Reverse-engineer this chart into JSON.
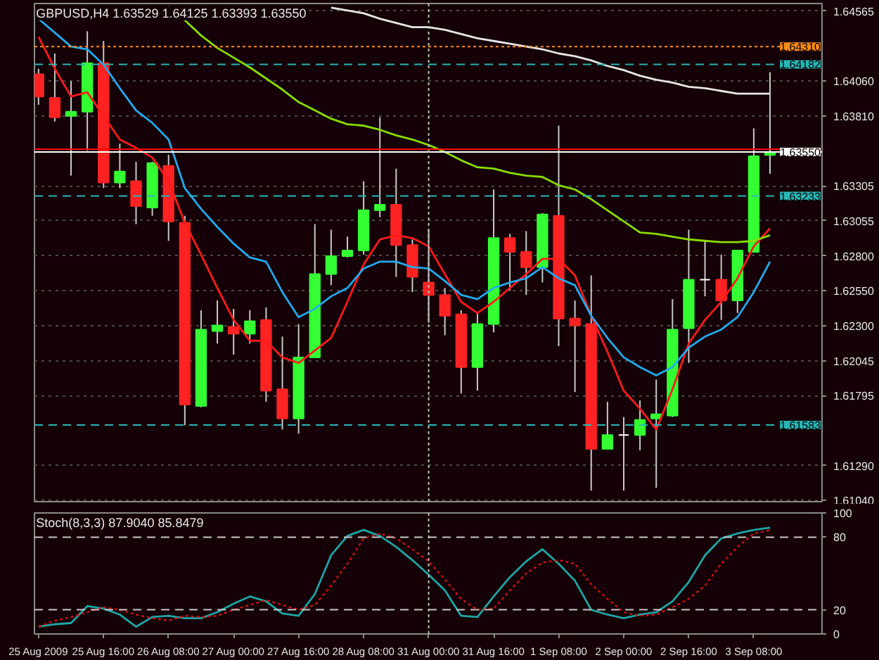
{
  "chart_data": [
    {
      "type": "candlestick",
      "title": "GBPUSD,H4 1.63529 1.64125 1.63393 1.63550",
      "categories": [
        "25 Aug 2009",
        null,
        null,
        null,
        "25 Aug 16:00",
        null,
        null,
        null,
        "26 Aug 08:00",
        null,
        null,
        null,
        "27 Aug 00:00",
        null,
        null,
        null,
        "27 Aug 16:00",
        null,
        null,
        null,
        "28 Aug 08:00",
        null,
        null,
        null,
        "31 Aug 00:00",
        null,
        null,
        null,
        "31 Aug 16:00",
        null,
        null,
        null,
        "1 Sep 08:00",
        null,
        null,
        null,
        "2 Sep 00:00",
        null,
        null,
        null,
        "2 Sep 16:00",
        null,
        null,
        null,
        "3 Sep 08:00",
        null
      ],
      "ohlc": [
        [
          1.6411,
          1.6415,
          1.6389,
          1.6395
        ],
        [
          1.6394,
          1.6426,
          1.6377,
          1.638
        ],
        [
          1.6381,
          1.6406,
          1.6338,
          1.6384
        ],
        [
          1.6384,
          1.6442,
          1.6356,
          1.6419
        ],
        [
          1.6419,
          1.6435,
          1.6329,
          1.6333
        ],
        [
          1.6333,
          1.6361,
          1.6329,
          1.6341
        ],
        [
          1.6334,
          1.6348,
          1.6303,
          1.6316
        ],
        [
          1.6315,
          1.6348,
          1.6309,
          1.6347
        ],
        [
          1.6345,
          1.6353,
          1.6291,
          1.6305
        ],
        [
          1.6304,
          1.6309,
          1.6158,
          1.6173
        ],
        [
          1.6172,
          1.6241,
          1.6171,
          1.6227
        ],
        [
          1.6226,
          1.6248,
          1.6217,
          1.623
        ],
        [
          1.6229,
          1.6242,
          1.6209,
          1.6224
        ],
        [
          1.6224,
          1.6241,
          1.6217,
          1.6233
        ],
        [
          1.6234,
          1.6243,
          1.6175,
          1.6183
        ],
        [
          1.6184,
          1.6222,
          1.6155,
          1.6163
        ],
        [
          1.6163,
          1.6231,
          1.6152,
          1.6207
        ],
        [
          1.6207,
          1.6303,
          1.6207,
          1.6267
        ],
        [
          1.6267,
          1.6299,
          1.6259,
          1.628
        ],
        [
          1.628,
          1.6294,
          1.6279,
          1.6284
        ],
        [
          1.6284,
          1.6334,
          1.6281,
          1.6313
        ],
        [
          1.6313,
          1.638,
          1.6308,
          1.6317
        ],
        [
          1.6317,
          1.6343,
          1.6265,
          1.6288
        ],
        [
          1.6288,
          1.6292,
          1.6254,
          1.6265
        ],
        [
          1.6261,
          1.6299,
          1.6232,
          1.6252
        ],
        [
          1.6252,
          1.6257,
          1.6223,
          1.6237
        ],
        [
          1.6238,
          1.6241,
          1.6181,
          1.62
        ],
        [
          1.62,
          1.6239,
          1.6183,
          1.6231
        ],
        [
          1.6231,
          1.6328,
          1.6225,
          1.6293
        ],
        [
          1.6293,
          1.6296,
          1.6255,
          1.6283
        ],
        [
          1.6283,
          1.6298,
          1.6252,
          1.6272
        ],
        [
          1.6272,
          1.6311,
          1.6261,
          1.631
        ],
        [
          1.6309,
          1.6374,
          1.6215,
          1.6235
        ],
        [
          1.6235,
          1.6248,
          1.6182,
          1.623
        ],
        [
          1.6231,
          1.6266,
          1.6111,
          1.6141
        ],
        [
          1.6141,
          1.6175,
          1.6141,
          1.6151
        ],
        [
          1.6151,
          1.6164,
          1.6111,
          1.6151
        ],
        [
          1.6151,
          1.6176,
          1.614,
          1.6162
        ],
        [
          1.6163,
          1.6191,
          1.6113,
          1.6166
        ],
        [
          1.6165,
          1.6249,
          1.6164,
          1.6227
        ],
        [
          1.6228,
          1.6299,
          1.6203,
          1.6263
        ],
        [
          1.6263,
          1.6291,
          1.6251,
          1.6263
        ],
        [
          1.6263,
          1.6281,
          1.6234,
          1.6248
        ],
        [
          1.6248,
          1.6284,
          1.6239,
          1.6284
        ],
        [
          1.6283,
          1.6372,
          1.6283,
          1.6352
        ],
        [
          1.63529,
          1.64125,
          1.63393,
          1.6355
        ]
      ],
      "colors": [
        "#ff2222",
        "#ff2222",
        "#33ff33",
        "#33ff33",
        "#ff2222",
        "#33ff33",
        "#ff2222",
        "#33ff33",
        "#ff2222",
        "#ff2222",
        "#33ff33",
        "#33ff33",
        "#ff2222",
        "#33ff33",
        "#ff2222",
        "#ff2222",
        "#33ff33",
        "#33ff33",
        "#33ff33",
        "#33ff33",
        "#33ff33",
        "#33ff33",
        "#ff2222",
        "#ff2222",
        "#ff2222",
        "#ff2222",
        "#ff2222",
        "#33ff33",
        "#33ff33",
        "#ff2222",
        "#ff2222",
        "#33ff33",
        "#ff2222",
        "#ff2222",
        "#ff2222",
        "#33ff33",
        "#ffffff",
        "#33ff33",
        "#33ff33",
        "#33ff33",
        "#33ff33",
        "#ffffff",
        "#ff2222",
        "#33ff33",
        "#33ff33",
        "#33ff33"
      ],
      "series": [
        {
          "type": "line",
          "color": "#ff1a1a",
          "values": [
            1.6438,
            1.6415,
            1.6395,
            1.6398,
            1.6381,
            1.6364,
            1.6358,
            1.6351,
            1.6334,
            1.6304,
            1.6281,
            1.6257,
            1.6234,
            1.6219,
            1.6219,
            1.6207,
            1.6203,
            1.6212,
            1.6221,
            1.6247,
            1.6274,
            1.6292,
            1.6295,
            1.6293,
            1.6287,
            1.6267,
            1.6247,
            1.6239,
            1.6247,
            1.6257,
            1.6267,
            1.6278,
            1.6278,
            1.6266,
            1.6237,
            1.6211,
            1.6183,
            1.617,
            1.6155,
            1.6184,
            1.6217,
            1.6234,
            1.6247,
            1.6264,
            1.6287,
            1.63
          ]
        },
        {
          "type": "line",
          "color": "#22aaee",
          "values": [
            1.6451,
            1.6441,
            1.6431,
            1.6429,
            1.6418,
            1.6401,
            1.6385,
            1.6376,
            1.6364,
            1.6329,
            1.6314,
            1.6301,
            1.6289,
            1.6279,
            1.6276,
            1.6254,
            1.6236,
            1.6242,
            1.6251,
            1.6257,
            1.6271,
            1.6276,
            1.6276,
            1.6272,
            1.6271,
            1.6262,
            1.6252,
            1.6249,
            1.6257,
            1.6261,
            1.6264,
            1.6272,
            1.6264,
            1.6259,
            1.6237,
            1.6221,
            1.6207,
            1.62,
            1.6194,
            1.62,
            1.6214,
            1.6222,
            1.6227,
            1.6236,
            1.6254,
            1.6276
          ]
        },
        {
          "type": "line",
          "color": "#88dd00",
          "values": [
            null,
            null,
            null,
            null,
            null,
            null,
            null,
            null,
            1.646,
            1.645,
            1.6439,
            1.643,
            1.6423,
            1.6416,
            1.6408,
            1.64,
            1.6391,
            1.6385,
            1.6379,
            1.6375,
            1.6374,
            1.6371,
            1.6367,
            1.6364,
            1.636,
            1.6355,
            1.6349,
            1.6344,
            1.6343,
            1.634,
            1.6338,
            1.6337,
            1.6331,
            1.6328,
            1.6321,
            1.6313,
            1.6305,
            1.6297,
            1.6296,
            1.6294,
            1.6292,
            1.6291,
            1.629,
            1.629,
            1.6291,
            1.6295
          ]
        },
        {
          "type": "line",
          "color": "#e6e6e6",
          "values": [
            null,
            null,
            null,
            null,
            null,
            null,
            null,
            null,
            null,
            null,
            null,
            null,
            null,
            null,
            null,
            null,
            null,
            null,
            1.6459,
            1.6457,
            1.6455,
            1.6451,
            1.6448,
            1.6445,
            1.6445,
            1.6443,
            1.644,
            1.6437,
            1.6435,
            1.6433,
            1.6431,
            1.6429,
            1.6426,
            1.6424,
            1.6421,
            1.6417,
            1.6414,
            1.641,
            1.6407,
            1.6405,
            1.6402,
            1.6401,
            1.6399,
            1.6397,
            1.6397,
            1.6397
          ]
        }
      ],
      "ylim": [
        1.6103,
        1.6462
      ],
      "yticks": [
        1.64565,
        {
          "value": 1.6406,
          "label": "1.64060"
        },
        {
          "value": 1.6381,
          "label": "1.63810"
        },
        1.63305,
        1.63055,
        {
          "value": 1.628,
          "label": "1.62800"
        },
        {
          "value": 1.6255,
          "label": "1.62550"
        },
        {
          "value": 1.623,
          "label": "1.62300"
        },
        1.62045,
        1.61795,
        {
          "value": 1.6129,
          "label": "1.61290"
        },
        {
          "value": 1.6104,
          "label": "1.61040"
        }
      ],
      "ref_lines": [
        {
          "axis": "y",
          "value": 1.6431,
          "label": "1.64310",
          "color": "#ff8c1a",
          "line_style": "dotted"
        },
        {
          "axis": "y",
          "value": 1.64182,
          "label": "1.64182",
          "color": "#29b6b6",
          "line_style": "dashed"
        },
        {
          "axis": "y",
          "value": 1.6357,
          "label": null,
          "color": "#ff0000",
          "line_style": "solid"
        },
        {
          "axis": "y",
          "value": 1.6355,
          "label": "1.63550",
          "color": "#ffffff",
          "line_style": "solid"
        },
        {
          "axis": "y",
          "value": 1.63233,
          "label": "1.63233",
          "color": "#29b6b6",
          "line_style": "dashed"
        },
        {
          "axis": "y",
          "value": 1.61583,
          "label": "1.61583",
          "color": "#29b6b6",
          "line_style": "dashed"
        },
        {
          "axis": "x",
          "value": "31 Aug 00:00",
          "label": null,
          "color": "#c0c0c0",
          "line_style": "dotted"
        }
      ],
      "grid": "y",
      "tick_labels": "y"
    },
    {
      "type": "line",
      "title": "Stoch(8,3,3) 87.9040 85.8479",
      "categories": [
        "25 Aug 2009",
        null,
        null,
        null,
        "25 Aug 16:00",
        null,
        null,
        null,
        "26 Aug 08:00",
        null,
        null,
        null,
        "27 Aug 00:00",
        null,
        null,
        null,
        "27 Aug 16:00",
        null,
        null,
        null,
        "28 Aug 08:00",
        null,
        null,
        null,
        "31 Aug 00:00",
        null,
        null,
        null,
        "31 Aug 16:00",
        null,
        null,
        null,
        "1 Sep 08:00",
        null,
        null,
        null,
        "2 Sep 00:00",
        null,
        null,
        null,
        "2 Sep 16:00",
        null,
        null,
        null,
        "3 Sep 08:00",
        null
      ],
      "series": [
        {
          "color": "#1fa5a5",
          "line_style": "solid",
          "values": [
            6,
            8,
            9,
            23,
            21,
            16,
            6,
            14,
            15,
            13,
            13,
            18,
            25,
            31,
            27,
            17,
            15,
            33,
            65,
            81,
            86,
            81,
            72,
            61,
            49,
            36,
            15,
            14,
            31,
            47,
            60,
            70,
            58,
            44,
            20,
            16,
            13,
            16,
            18,
            27,
            43,
            65,
            79,
            83,
            86,
            87.904
          ]
        },
        {
          "color": "#cc1111",
          "line_style": "dotted",
          "values": [
            6,
            11,
            14,
            18,
            22,
            20,
            16,
            13,
            11,
            15,
            14,
            15,
            20,
            24,
            28,
            24,
            20,
            24,
            40,
            58,
            79,
            83,
            79,
            70,
            60,
            45,
            29,
            20,
            21,
            36,
            50,
            59,
            61,
            58,
            41,
            29,
            18,
            15,
            16,
            22,
            29,
            40,
            58,
            72,
            83,
            85.8479
          ]
        }
      ],
      "ylim": [
        0,
        100
      ],
      "yticks": [
        0,
        20,
        80,
        100
      ],
      "ref_lines": [
        {
          "axis": "y",
          "value": 20,
          "label": null,
          "color": "#c8c8c8",
          "line_style": "dashed"
        },
        {
          "axis": "y",
          "value": 80,
          "label": null,
          "color": "#c8c8c8",
          "line_style": "dashed"
        },
        {
          "axis": "x",
          "value": "31 Aug 00:00",
          "label": null,
          "color": "#c0c0c0",
          "line_style": "dotted"
        }
      ]
    }
  ]
}
